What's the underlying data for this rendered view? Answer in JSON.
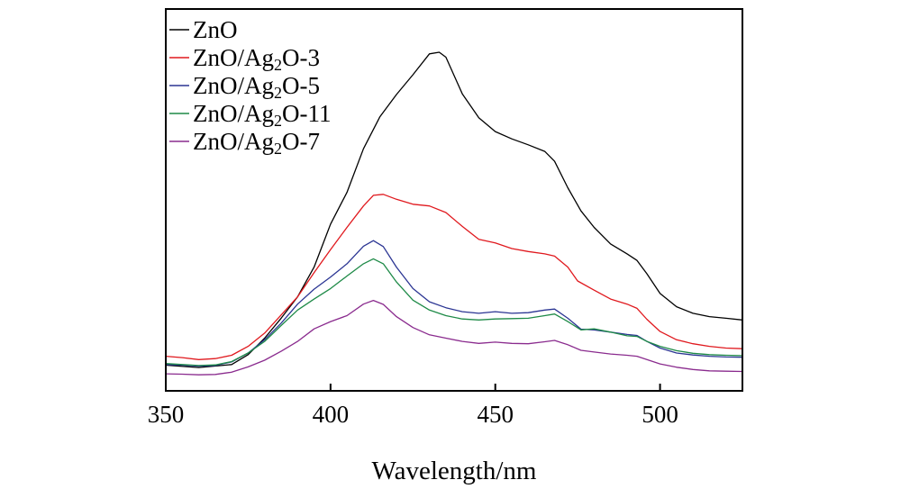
{
  "chart_data": {
    "type": "line",
    "title": "",
    "xlabel": "Wavelength/nm",
    "ylabel": "",
    "xlim": [
      350,
      525
    ],
    "ylim": [
      0,
      100
    ],
    "x_ticks": [
      350,
      400,
      450,
      500
    ],
    "x_tick_labels": [
      "350",
      "400",
      "450",
      "500"
    ],
    "grid": false,
    "legend_position": "top-left",
    "series": [
      {
        "name": "ZnO",
        "label_parts": [
          {
            "t": "ZnO"
          }
        ],
        "color": "#000000",
        "points": [
          [
            350,
            5.3
          ],
          [
            360,
            4.6
          ],
          [
            370,
            5.5
          ],
          [
            375,
            8.5
          ],
          [
            380,
            13.5
          ],
          [
            385,
            19.5
          ],
          [
            390,
            26
          ],
          [
            395,
            35
          ],
          [
            400,
            48
          ],
          [
            405,
            57.6
          ],
          [
            410,
            70.8
          ],
          [
            415,
            80.5
          ],
          [
            420,
            87.2
          ],
          [
            425,
            93.2
          ],
          [
            430,
            99.5
          ],
          [
            433,
            100
          ],
          [
            435,
            98.5
          ],
          [
            440,
            87.4
          ],
          [
            445,
            80.2
          ],
          [
            450,
            76
          ],
          [
            455,
            73.8
          ],
          [
            460,
            72
          ],
          [
            465,
            70
          ],
          [
            468,
            67
          ],
          [
            472,
            59
          ],
          [
            476,
            52
          ],
          [
            480,
            47
          ],
          [
            485,
            42
          ],
          [
            490,
            39
          ],
          [
            493,
            37
          ],
          [
            496,
            33
          ],
          [
            500,
            27
          ],
          [
            505,
            23
          ],
          [
            510,
            21
          ],
          [
            515,
            20
          ],
          [
            520,
            19.5
          ],
          [
            525,
            19
          ]
        ]
      },
      {
        "name": "ZnO/Ag2O-3",
        "label_parts": [
          {
            "t": "ZnO/Ag"
          },
          {
            "t": "2",
            "sub": true
          },
          {
            "t": "O-3"
          }
        ],
        "color": "#e0191e",
        "points": [
          [
            350,
            8
          ],
          [
            355,
            7.6
          ],
          [
            360,
            7
          ],
          [
            365,
            7.3
          ],
          [
            370,
            8.3
          ],
          [
            375,
            11
          ],
          [
            380,
            15
          ],
          [
            385,
            20.5
          ],
          [
            390,
            26
          ],
          [
            395,
            33.3
          ],
          [
            400,
            40.3
          ],
          [
            405,
            47
          ],
          [
            410,
            53.5
          ],
          [
            413,
            56.7
          ],
          [
            416,
            57
          ],
          [
            420,
            55.5
          ],
          [
            425,
            54
          ],
          [
            430,
            53.5
          ],
          [
            435,
            51.5
          ],
          [
            440,
            47.3
          ],
          [
            445,
            43.4
          ],
          [
            450,
            42.3
          ],
          [
            455,
            40.6
          ],
          [
            460,
            39.7
          ],
          [
            465,
            39
          ],
          [
            468,
            38.3
          ],
          [
            472,
            35
          ],
          [
            475,
            30.8
          ],
          [
            480,
            28
          ],
          [
            485,
            25.3
          ],
          [
            490,
            23.8
          ],
          [
            493,
            22.5
          ],
          [
            496,
            19.2
          ],
          [
            500,
            15.5
          ],
          [
            505,
            13
          ],
          [
            510,
            11.8
          ],
          [
            515,
            11
          ],
          [
            520,
            10.5
          ],
          [
            525,
            10.3
          ]
        ]
      },
      {
        "name": "ZnO/Ag2O-5",
        "label_parts": [
          {
            "t": "ZnO/Ag"
          },
          {
            "t": "2",
            "sub": true
          },
          {
            "t": "O-5"
          }
        ],
        "color": "#2b3593",
        "points": [
          [
            350,
            5.5
          ],
          [
            355,
            5.3
          ],
          [
            360,
            5
          ],
          [
            365,
            5.2
          ],
          [
            370,
            6.3
          ],
          [
            375,
            9
          ],
          [
            380,
            13
          ],
          [
            385,
            18
          ],
          [
            390,
            23.8
          ],
          [
            395,
            28.3
          ],
          [
            400,
            32
          ],
          [
            405,
            36
          ],
          [
            410,
            41.3
          ],
          [
            413,
            43
          ],
          [
            416,
            41.2
          ],
          [
            420,
            35
          ],
          [
            425,
            28.5
          ],
          [
            430,
            24.5
          ],
          [
            435,
            22.7
          ],
          [
            440,
            21.5
          ],
          [
            445,
            21
          ],
          [
            450,
            21.5
          ],
          [
            455,
            21
          ],
          [
            460,
            21.2
          ],
          [
            465,
            22
          ],
          [
            468,
            22.3
          ],
          [
            472,
            19.5
          ],
          [
            476,
            16.2
          ],
          [
            480,
            16
          ],
          [
            485,
            15.3
          ],
          [
            490,
            14.6
          ],
          [
            493,
            14.3
          ],
          [
            496,
            12.5
          ],
          [
            500,
            10.5
          ],
          [
            505,
            9
          ],
          [
            510,
            8.4
          ],
          [
            515,
            8
          ],
          [
            520,
            7.8
          ],
          [
            525,
            7.7
          ]
        ]
      },
      {
        "name": "ZnO/Ag2O-11",
        "label_parts": [
          {
            "t": "ZnO/Ag"
          },
          {
            "t": "2",
            "sub": true
          },
          {
            "t": "O-11"
          }
        ],
        "color": "#1e8a47",
        "points": [
          [
            350,
            5.8
          ],
          [
            355,
            5.5
          ],
          [
            360,
            5.2
          ],
          [
            365,
            5.4
          ],
          [
            370,
            6.4
          ],
          [
            375,
            9
          ],
          [
            380,
            12.5
          ],
          [
            385,
            17.3
          ],
          [
            390,
            22
          ],
          [
            395,
            25.3
          ],
          [
            400,
            28.5
          ],
          [
            405,
            32.3
          ],
          [
            410,
            36
          ],
          [
            413,
            37.5
          ],
          [
            416,
            36
          ],
          [
            420,
            30.5
          ],
          [
            425,
            25
          ],
          [
            430,
            22
          ],
          [
            435,
            20.3
          ],
          [
            440,
            19.3
          ],
          [
            445,
            19
          ],
          [
            450,
            19.3
          ],
          [
            455,
            19.4
          ],
          [
            460,
            19.5
          ],
          [
            465,
            20.3
          ],
          [
            468,
            20.8
          ],
          [
            472,
            18.5
          ],
          [
            476,
            16
          ],
          [
            480,
            16.3
          ],
          [
            485,
            15.3
          ],
          [
            490,
            14.2
          ],
          [
            493,
            14
          ],
          [
            496,
            12.5
          ],
          [
            500,
            11
          ],
          [
            505,
            9.7
          ],
          [
            510,
            8.9
          ],
          [
            515,
            8.5
          ],
          [
            520,
            8.3
          ],
          [
            525,
            8.2
          ]
        ]
      },
      {
        "name": "ZnO/Ag2O-7",
        "label_parts": [
          {
            "t": "ZnO/Ag"
          },
          {
            "t": "2",
            "sub": true
          },
          {
            "t": "O-7"
          }
        ],
        "color": "#8a2b8e",
        "points": [
          [
            350,
            2.7
          ],
          [
            355,
            2.6
          ],
          [
            360,
            2.4
          ],
          [
            365,
            2.5
          ],
          [
            370,
            3.2
          ],
          [
            375,
            4.8
          ],
          [
            380,
            6.8
          ],
          [
            385,
            9.5
          ],
          [
            390,
            12.5
          ],
          [
            395,
            16.3
          ],
          [
            400,
            18.5
          ],
          [
            405,
            20.3
          ],
          [
            410,
            23.8
          ],
          [
            413,
            24.9
          ],
          [
            416,
            23.7
          ],
          [
            420,
            20
          ],
          [
            425,
            16.7
          ],
          [
            430,
            14.5
          ],
          [
            435,
            13.5
          ],
          [
            440,
            12.5
          ],
          [
            445,
            11.9
          ],
          [
            450,
            12.3
          ],
          [
            455,
            11.9
          ],
          [
            460,
            11.8
          ],
          [
            465,
            12.4
          ],
          [
            468,
            12.8
          ],
          [
            472,
            11.5
          ],
          [
            476,
            9.8
          ],
          [
            480,
            9.3
          ],
          [
            485,
            8.7
          ],
          [
            490,
            8.3
          ],
          [
            493,
            8
          ],
          [
            496,
            7
          ],
          [
            500,
            5.7
          ],
          [
            505,
            4.7
          ],
          [
            510,
            4
          ],
          [
            515,
            3.6
          ],
          [
            520,
            3.5
          ],
          [
            525,
            3.4
          ]
        ]
      }
    ]
  }
}
